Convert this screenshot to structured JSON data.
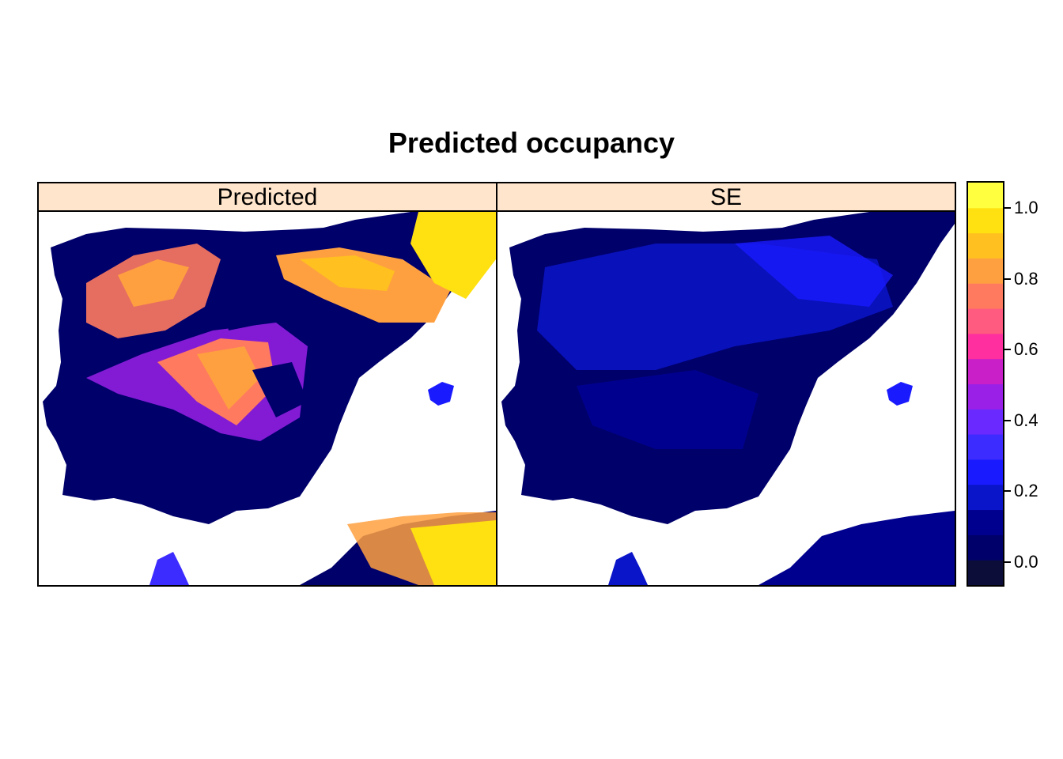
{
  "title": "Predicted occupancy",
  "panels": [
    {
      "label": "Predicted"
    },
    {
      "label": "SE"
    }
  ],
  "colorkey": {
    "ticks": [
      "0.0",
      "0.2",
      "0.4",
      "0.6",
      "0.8",
      "1.0"
    ],
    "palette": [
      "#0d0d3a",
      "#00006b",
      "#00008f",
      "#0a14c8",
      "#1a1aff",
      "#3d2cff",
      "#6a2aff",
      "#9a20e8",
      "#c81fc8",
      "#ff2fa0",
      "#ff5a80",
      "#ff7a5f",
      "#ffa040",
      "#ffc020",
      "#ffe010",
      "#ffff40"
    ]
  }
}
